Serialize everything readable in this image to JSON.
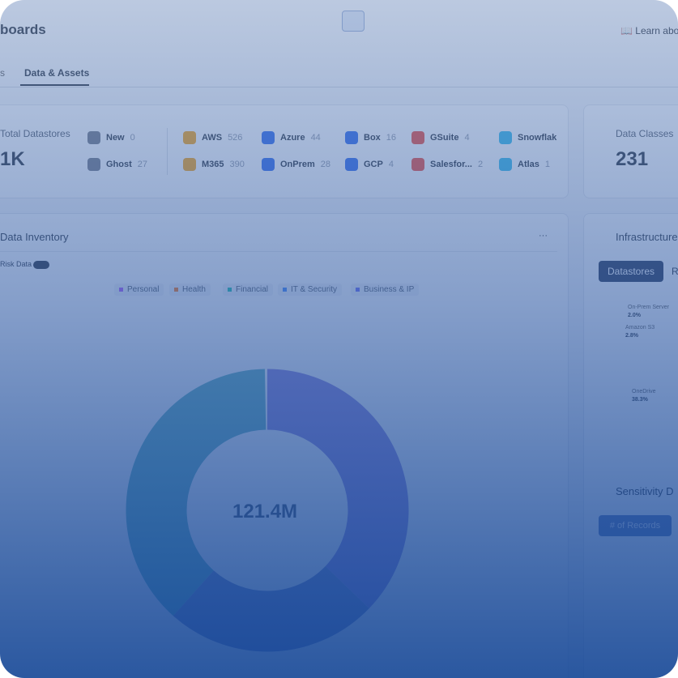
{
  "header": {
    "title": "boards",
    "learn_link": "Learn abo"
  },
  "tabs": [
    "s",
    "Data & Assets"
  ],
  "datastores": {
    "label": "Total Datastores",
    "total": "1K",
    "sources": [
      {
        "name": "New",
        "count": "0"
      },
      {
        "name": "Ghost",
        "count": "27"
      },
      {
        "name": "AWS",
        "count": "526"
      },
      {
        "name": "M365",
        "count": "390"
      },
      {
        "name": "Azure",
        "count": "44"
      },
      {
        "name": "OnPrem",
        "count": "28"
      },
      {
        "name": "Box",
        "count": "16"
      },
      {
        "name": "GCP",
        "count": "4"
      },
      {
        "name": "GSuite",
        "count": "4"
      },
      {
        "name": "Salesfor...",
        "count": "2"
      },
      {
        "name": "Snowflak"
      },
      {
        "name": "Atlas",
        "count": "1"
      }
    ]
  },
  "data_classes": {
    "label": "Data Classes",
    "value": "231"
  },
  "inventory": {
    "title": "Data Inventory",
    "menu": "···",
    "toggle_label": "Risk Data",
    "legend": [
      "Personal",
      "Health",
      "Financial",
      "IT & Security",
      "Business & IP"
    ],
    "center_value": "121.4M"
  },
  "infrastructure": {
    "title": "Infrastructure",
    "tabs": [
      "Datastores",
      "R"
    ],
    "labels": [
      {
        "name": "On-Prem Server",
        "share": "2.0%"
      },
      {
        "name": "Amazon S3",
        "share": "2.8%"
      },
      {
        "name": "OneDrive",
        "share": "38.3%"
      }
    ]
  },
  "sensitivity": {
    "title": "Sensitivity D",
    "button": "# of Records"
  }
}
